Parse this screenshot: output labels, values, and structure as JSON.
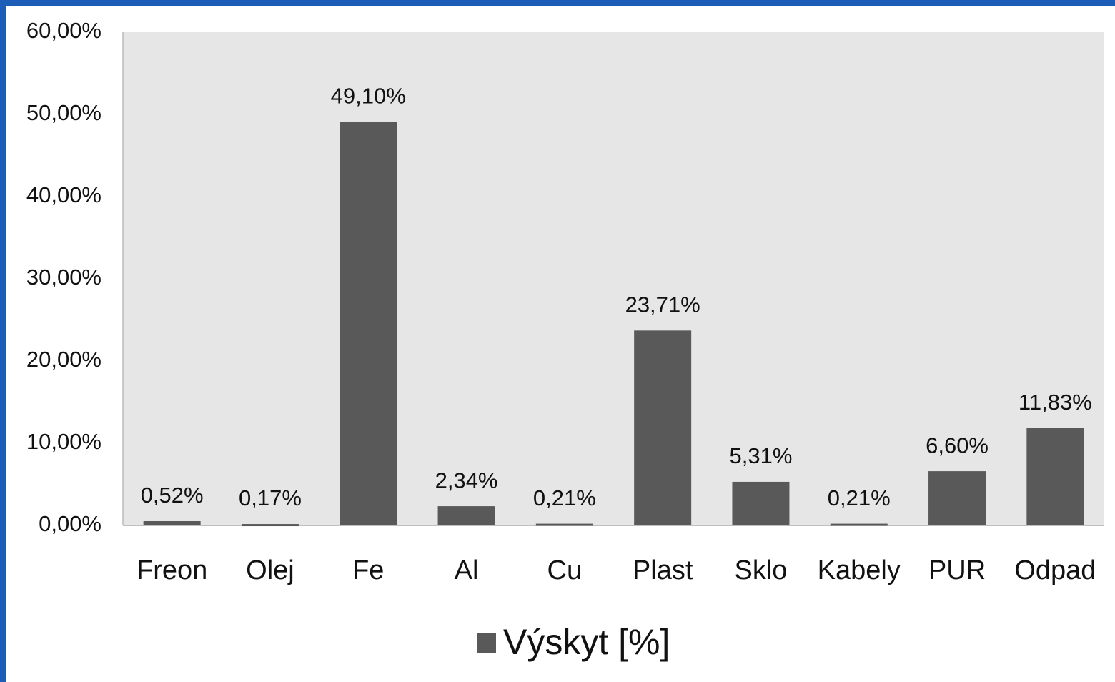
{
  "chart_data": {
    "type": "bar",
    "categories": [
      "Freon",
      "Olej",
      "Fe",
      "Al",
      "Cu",
      "Plast",
      "Sklo",
      "Kabely",
      "PUR",
      "Odpad"
    ],
    "series": [
      {
        "name": "Výskyt [%]",
        "color": "#595959",
        "values": [
          0.52,
          0.17,
          49.1,
          2.34,
          0.21,
          23.71,
          5.31,
          0.21,
          6.6,
          11.83
        ],
        "value_labels": [
          "0,52%",
          "0,17%",
          "49,10%",
          "2,34%",
          "0,21%",
          "23,71%",
          "5,31%",
          "0,21%",
          "6,60%",
          "11,83%"
        ]
      }
    ],
    "ylim": [
      0,
      60
    ],
    "yticks": [
      {
        "value": 0,
        "label": "0,00%"
      },
      {
        "value": 10,
        "label": "10,00%"
      },
      {
        "value": 20,
        "label": "20,00%"
      },
      {
        "value": 30,
        "label": "30,00%"
      },
      {
        "value": 40,
        "label": "40,00%"
      },
      {
        "value": 50,
        "label": "50,00%"
      },
      {
        "value": 60,
        "label": "60,00%"
      }
    ],
    "grid": false,
    "legend": "bottom"
  }
}
